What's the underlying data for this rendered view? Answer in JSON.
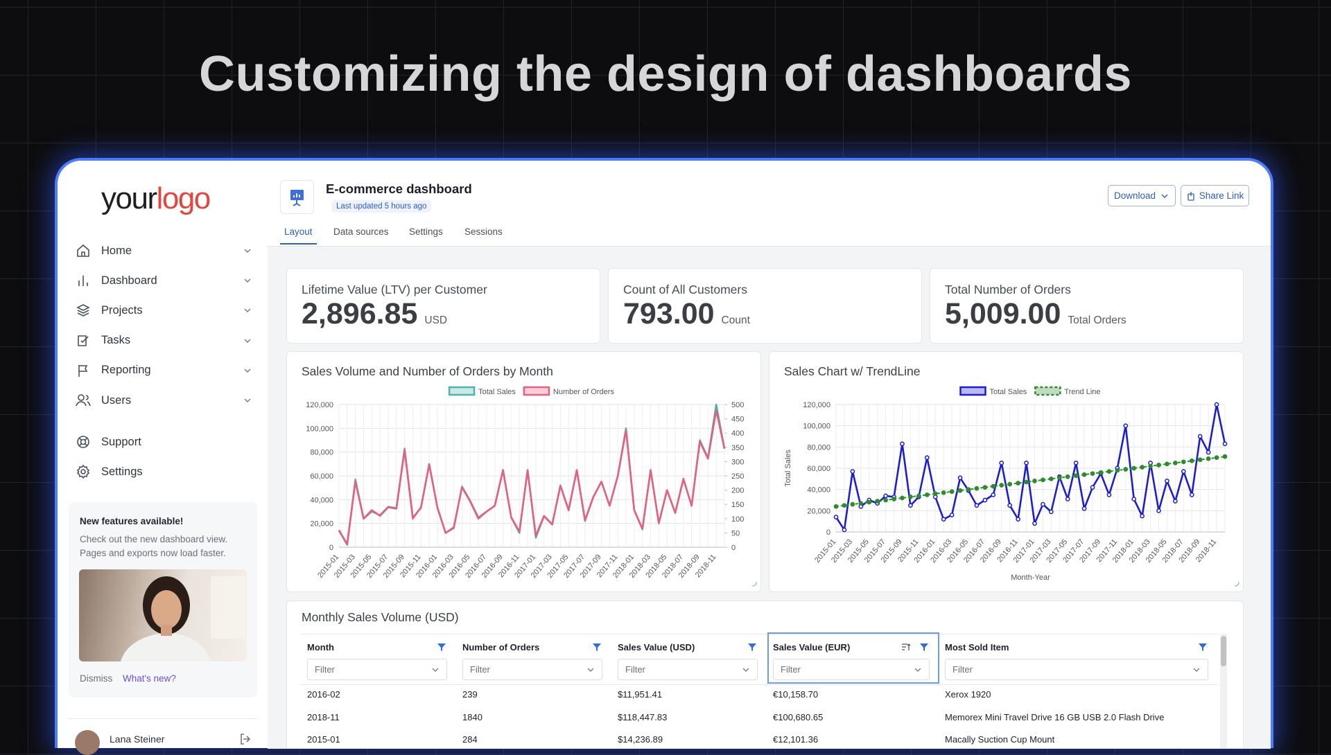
{
  "headline": "Customizing the design of dashboards",
  "sidebar": {
    "logo": [
      "your",
      "logo"
    ],
    "nav": [
      "Home",
      "Dashboard",
      "Projects",
      "Tasks",
      "Reporting",
      "Users"
    ],
    "secondary": [
      "Support",
      "Settings"
    ],
    "notice": {
      "title": "New features available!",
      "text": "Check out the new dashboard view. Pages and exports now load faster.",
      "dismiss": "Dismiss",
      "link": "What's new?"
    },
    "user": "Lana Steiner"
  },
  "header": {
    "title": "E-commerce dashboard",
    "updated": "Last updated 5 hours ago",
    "buttons": [
      "Download",
      "Share Link"
    ]
  },
  "tabs": {
    "items": [
      "Layout",
      "Data sources",
      "Settings",
      "Sessions"
    ],
    "active": 0
  },
  "kpis": [
    {
      "label": "Lifetime Value (LTV) per Customer",
      "value": "2,896.85",
      "unit": "USD"
    },
    {
      "label": "Count of All Customers",
      "value": "793.00",
      "unit": "Count"
    },
    {
      "label": "Total Number of Orders",
      "value": "5,009.00",
      "unit": "Total Orders"
    }
  ],
  "chart_data": [
    {
      "type": "line",
      "title": "Sales Volume and Number of Orders by Month",
      "legend": "top",
      "grid": true,
      "categories": [
        "2015-01",
        null,
        "2015-03",
        null,
        "2015-05",
        null,
        "2015-07",
        null,
        "2015-09",
        null,
        "2015-11",
        null,
        "2016-01",
        null,
        "2016-03",
        null,
        "2016-05",
        null,
        "2016-07",
        null,
        "2016-09",
        null,
        "2016-11",
        null,
        "2017-01",
        null,
        "2017-03",
        null,
        "2017-05",
        null,
        "2017-07",
        null,
        "2017-09",
        null,
        "2017-11",
        null,
        "2018-01",
        null,
        "2018-03",
        null,
        "2018-05",
        null,
        "2018-07",
        null,
        "2018-09",
        null,
        "2018-11",
        null
      ],
      "ylim": [
        0,
        120000
      ],
      "yticks": [
        0,
        {
          "value": 20000,
          "label": "20,000"
        },
        {
          "value": 40000,
          "label": "40,000"
        },
        {
          "value": 60000,
          "label": "60,000"
        },
        {
          "value": 80000,
          "label": "80,000"
        },
        {
          "value": 100000,
          "label": "100,000"
        },
        {
          "value": 120000,
          "label": "120,000"
        }
      ],
      "y2lim": [
        0,
        500
      ],
      "y2ticks": [
        0,
        50,
        100,
        150,
        200,
        250,
        300,
        350,
        400,
        450,
        500
      ],
      "series": [
        {
          "name": "Total Sales",
          "color": "#4fb3aa",
          "values": [
            14000,
            2000,
            57000,
            24000,
            30000,
            27000,
            34000,
            33000,
            83000,
            25000,
            33000,
            70000,
            33000,
            12000,
            16000,
            51000,
            39000,
            25000,
            30000,
            35000,
            65000,
            25000,
            12000,
            65000,
            8000,
            26000,
            19000,
            52000,
            31000,
            65000,
            22000,
            42000,
            55000,
            35000,
            60000,
            100000,
            31000,
            15000,
            65000,
            20000,
            48000,
            29000,
            57000,
            35000,
            90000,
            75000,
            120000,
            83000
          ]
        },
        {
          "name": "Number of Orders",
          "color": "#e8607f",
          "axis": "y2",
          "values": [
            60,
            10,
            230,
            100,
            130,
            110,
            140,
            135,
            340,
            100,
            140,
            290,
            140,
            50,
            70,
            210,
            160,
            100,
            125,
            145,
            270,
            105,
            55,
            270,
            40,
            110,
            80,
            215,
            130,
            270,
            95,
            175,
            230,
            145,
            250,
            410,
            130,
            65,
            270,
            85,
            200,
            120,
            240,
            145,
            370,
            310,
            480,
            345
          ]
        }
      ]
    },
    {
      "type": "line",
      "title": "Sales Chart w/ TrendLine",
      "legend": "top",
      "grid": true,
      "ylabel": "Total Sales",
      "xlabel": "Month-Year",
      "categories": [
        "2015-01",
        null,
        "2015-03",
        null,
        "2015-05",
        null,
        "2015-07",
        null,
        "2015-09",
        null,
        "2015-11",
        null,
        "2016-01",
        null,
        "2016-03",
        null,
        "2016-05",
        null,
        "2016-07",
        null,
        "2016-09",
        null,
        "2016-11",
        null,
        "2017-01",
        null,
        "2017-03",
        null,
        "2017-05",
        null,
        "2017-07",
        null,
        "2017-09",
        null,
        "2017-11",
        null,
        "2018-01",
        null,
        "2018-03",
        null,
        "2018-05",
        null,
        "2018-07",
        null,
        "2018-09",
        null,
        "2018-11",
        null
      ],
      "ylim": [
        0,
        120000
      ],
      "yticks": [
        0,
        {
          "value": 20000,
          "label": "20,000"
        },
        {
          "value": 40000,
          "label": "40,000"
        },
        {
          "value": 60000,
          "label": "60,000"
        },
        {
          "value": 80000,
          "label": "80,000"
        },
        {
          "value": 100000,
          "label": "100,000"
        },
        {
          "value": 120000,
          "label": "120,000"
        }
      ],
      "series": [
        {
          "name": "Total Sales",
          "color": "#1c1cd0",
          "markers": true,
          "values": [
            14000,
            2000,
            57000,
            24000,
            30000,
            27000,
            34000,
            33000,
            83000,
            25000,
            33000,
            70000,
            33000,
            12000,
            16000,
            51000,
            39000,
            25000,
            30000,
            35000,
            65000,
            25000,
            12000,
            65000,
            8000,
            26000,
            19000,
            52000,
            31000,
            65000,
            22000,
            42000,
            55000,
            35000,
            60000,
            100000,
            31000,
            15000,
            65000,
            20000,
            48000,
            29000,
            57000,
            35000,
            90000,
            75000,
            120000,
            83000
          ]
        },
        {
          "name": "Trend Line",
          "color": "#2e8b2e",
          "markers": true,
          "dashed": true,
          "values": [
            24000,
            25000,
            26000,
            27000,
            28000,
            29000,
            30000,
            31000,
            32000,
            33000,
            34000,
            35000,
            36000,
            37000,
            38000,
            39000,
            40000,
            41000,
            42000,
            43000,
            44000,
            45000,
            46000,
            47000,
            48000,
            49000,
            50000,
            51000,
            52000,
            53000,
            54000,
            55000,
            56000,
            57000,
            58000,
            59000,
            60000,
            61000,
            62000,
            63000,
            64000,
            65000,
            66000,
            67000,
            68000,
            69000,
            70000,
            71000
          ]
        }
      ]
    }
  ],
  "table": {
    "title": "Monthly Sales Volume (USD)",
    "columns": [
      "Month",
      "Number of Orders",
      "Sales Value (USD)",
      "Sales Value (EUR)",
      "Most Sold Item"
    ],
    "filter": "Filter",
    "selected_column": 3,
    "rows": [
      [
        "2016-02",
        "239",
        "$11,951.41",
        "€10,158.70",
        "Xerox 1920"
      ],
      [
        "2018-11",
        "1840",
        "$118,447.83",
        "€100,680.65",
        "Memorex Mini Travel Drive 16 GB USB 2.0 Flash Drive"
      ],
      [
        "2015-01",
        "284",
        "$14,236.89",
        "€12,101.36",
        "Macally Suction Cup Mount"
      ]
    ]
  }
}
